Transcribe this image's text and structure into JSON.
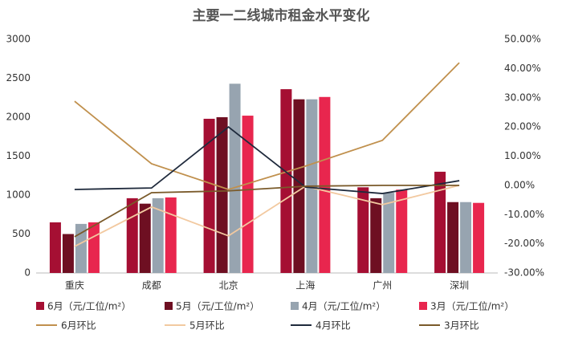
{
  "chart_data": {
    "type": "bar",
    "title": "主要一二线城市租金水平变化",
    "categories": [
      "重庆",
      "成都",
      "北京",
      "上海",
      "广州",
      "深圳"
    ],
    "series": [
      {
        "name": "6月（元/工位/m²）",
        "type": "bar",
        "color": "#a50f33",
        "values": [
          650,
          960,
          1980,
          2360,
          1100,
          1300
        ]
      },
      {
        "name": "5月（元/工位/m²）",
        "type": "bar",
        "color": "#6e0f22",
        "values": [
          500,
          890,
          2000,
          2230,
          960,
          910
        ]
      },
      {
        "name": "4月（元/工位/m²）",
        "type": "bar",
        "color": "#97a4b0",
        "values": [
          630,
          960,
          2430,
          2230,
          1030,
          910
        ]
      },
      {
        "name": "3月（元/工位/m²）",
        "type": "bar",
        "color": "#e8264e",
        "values": [
          650,
          970,
          2020,
          2260,
          1070,
          900
        ]
      },
      {
        "name": "6月环比",
        "type": "line",
        "axis": "y2",
        "color": "#c0904d",
        "values": [
          28.8,
          7.4,
          -1.4,
          6.6,
          15.4,
          42
        ]
      },
      {
        "name": "5月环比",
        "type": "line",
        "axis": "y2",
        "color": "#f2c9a0",
        "values": [
          -20.9,
          -7.4,
          -17.3,
          -0.3,
          -6.6,
          0
        ]
      },
      {
        "name": "4月环比",
        "type": "line",
        "axis": "y2",
        "color": "#1f2a3c",
        "values": [
          -1.4,
          -0.9,
          20,
          -0.6,
          -2.8,
          1.6
        ]
      },
      {
        "name": "3月环比",
        "type": "line",
        "axis": "y2",
        "color": "#7a5a2a",
        "values": [
          -17.6,
          -2.5,
          -1.9,
          -0.3,
          0,
          0
        ]
      }
    ],
    "ylim": [
      0,
      3000
    ],
    "yticks": [
      0,
      500,
      1000,
      1500,
      2000,
      2500,
      3000
    ],
    "y2lim": [
      -30,
      50
    ],
    "y2ticks": [
      {
        "value": -30,
        "label": "-30.00%"
      },
      {
        "value": -20,
        "label": "-20.00%"
      },
      {
        "value": -10,
        "label": "-10.00%"
      },
      {
        "value": 0,
        "label": "0.00%"
      },
      {
        "value": 10,
        "label": "10.00%"
      },
      {
        "value": 20,
        "label": "20.00%"
      },
      {
        "value": 30,
        "label": "30.00%"
      },
      {
        "value": 40,
        "label": "40.00%"
      },
      {
        "value": 50,
        "label": "50.00%"
      }
    ],
    "legend": "bottom"
  }
}
